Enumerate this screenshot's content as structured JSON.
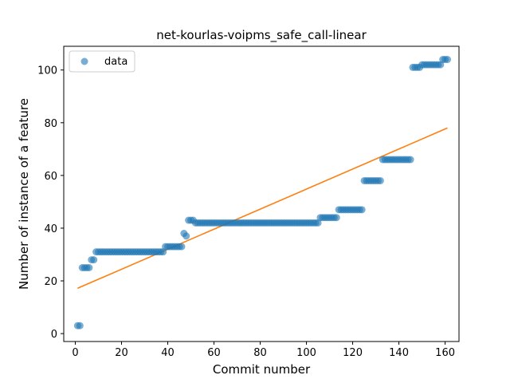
{
  "chart_data": {
    "type": "scatter",
    "title": "net-kourlas-voipms_safe_call-linear",
    "xlabel": "Commit number",
    "ylabel": "Number of instance of a feature",
    "xlim": [
      -5,
      166
    ],
    "ylim": [
      -3,
      109
    ],
    "xticks": [
      0,
      20,
      40,
      60,
      80,
      100,
      120,
      140,
      160
    ],
    "yticks": [
      0,
      20,
      40,
      60,
      80,
      100
    ],
    "grid": false,
    "legend": {
      "placement": "top-left",
      "entries": [
        "data"
      ]
    },
    "series": [
      {
        "name": "data",
        "kind": "scatter",
        "color": "#1f77b4",
        "segments": [
          {
            "x_from": 1,
            "x_to": 2,
            "y": 3
          },
          {
            "x_from": 3,
            "x_to": 6,
            "y": 25
          },
          {
            "x_from": 7,
            "x_to": 8,
            "y": 28
          },
          {
            "x_from": 9,
            "x_to": 38,
            "y": 31
          },
          {
            "x_from": 39,
            "x_to": 46,
            "y": 33
          },
          {
            "x_from": 47,
            "x_to": 47,
            "y": 38
          },
          {
            "x_from": 48,
            "x_to": 48,
            "y": 37
          },
          {
            "x_from": 49,
            "x_to": 51,
            "y": 43
          },
          {
            "x_from": 52,
            "x_to": 105,
            "y": 42
          },
          {
            "x_from": 106,
            "x_to": 113,
            "y": 44
          },
          {
            "x_from": 114,
            "x_to": 124,
            "y": 47
          },
          {
            "x_from": 125,
            "x_to": 132,
            "y": 58
          },
          {
            "x_from": 133,
            "x_to": 145,
            "y": 66
          },
          {
            "x_from": 146,
            "x_to": 149,
            "y": 101
          },
          {
            "x_from": 150,
            "x_to": 158,
            "y": 102
          },
          {
            "x_from": 159,
            "x_to": 161,
            "y": 104
          }
        ]
      },
      {
        "name": "linear fit",
        "kind": "line",
        "color": "#ff7f0e",
        "x": [
          1,
          161
        ],
        "y": [
          17.2,
          78
        ]
      }
    ]
  }
}
